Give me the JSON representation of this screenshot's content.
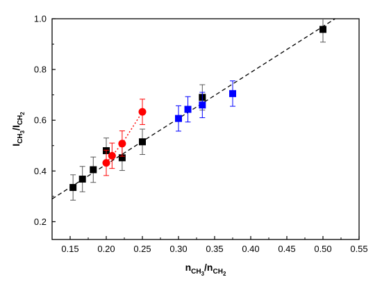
{
  "chart_data": {
    "type": "scatter",
    "xlabel": {
      "main": "n",
      "sub1": "CH",
      "sub1b": "3",
      "sep": "/n",
      "sub2": "CH",
      "sub2b": "2"
    },
    "ylabel": {
      "main": "I",
      "sub1": "CH",
      "sub1b": "3",
      "sep": "/I",
      "sub2": "CH",
      "sub2b": "2"
    },
    "xlim": [
      0.125,
      0.55
    ],
    "ylim": [
      0.13,
      1.0
    ],
    "x_ticks": [
      0.15,
      0.2,
      0.25,
      0.3,
      0.35,
      0.4,
      0.45,
      0.5,
      0.55
    ],
    "x_tick_labels": [
      "0.15",
      "0.20",
      "0.25",
      "0.30",
      "0.35",
      "0.40",
      "0.45",
      "0.50",
      "0.55"
    ],
    "y_ticks": [
      0.2,
      0.4,
      0.6,
      0.8,
      1.0
    ],
    "y_tick_labels": [
      "0.2",
      "0.4",
      "0.6",
      "0.8",
      "1.0"
    ],
    "grid": false,
    "legend": "none",
    "series": [
      {
        "marker": "square",
        "color": "#000000",
        "points": [
          {
            "x": 0.154,
            "y": 0.335,
            "err": 0.05
          },
          {
            "x": 0.167,
            "y": 0.368,
            "err": 0.05
          },
          {
            "x": 0.182,
            "y": 0.405,
            "err": 0.05
          },
          {
            "x": 0.2,
            "y": 0.48,
            "err": 0.05
          },
          {
            "x": 0.222,
            "y": 0.452,
            "err": 0.05
          },
          {
            "x": 0.25,
            "y": 0.515,
            "err": 0.05
          },
          {
            "x": 0.333,
            "y": 0.69,
            "err": 0.05
          },
          {
            "x": 0.5,
            "y": 0.958,
            "err": 0.05
          }
        ]
      },
      {
        "marker": "circle",
        "color": "#ff0000",
        "connect": "dotted",
        "points": [
          {
            "x": 0.2,
            "y": 0.432,
            "err": 0.05
          },
          {
            "x": 0.208,
            "y": 0.46,
            "err": 0.05
          },
          {
            "x": 0.222,
            "y": 0.508,
            "err": 0.05
          },
          {
            "x": 0.25,
            "y": 0.633,
            "err": 0.05
          }
        ]
      },
      {
        "marker": "square",
        "color": "#0000ff",
        "points": [
          {
            "x": 0.3,
            "y": 0.607,
            "err": 0.05
          },
          {
            "x": 0.313,
            "y": 0.643,
            "err": 0.05
          },
          {
            "x": 0.333,
            "y": 0.66,
            "err": 0.05
          },
          {
            "x": 0.375,
            "y": 0.705,
            "err": 0.05
          }
        ]
      }
    ],
    "fit_line": {
      "style": "dashed",
      "color": "#000000",
      "x": [
        0.125,
        0.55
      ],
      "y": [
        0.29,
        1.06
      ]
    }
  }
}
